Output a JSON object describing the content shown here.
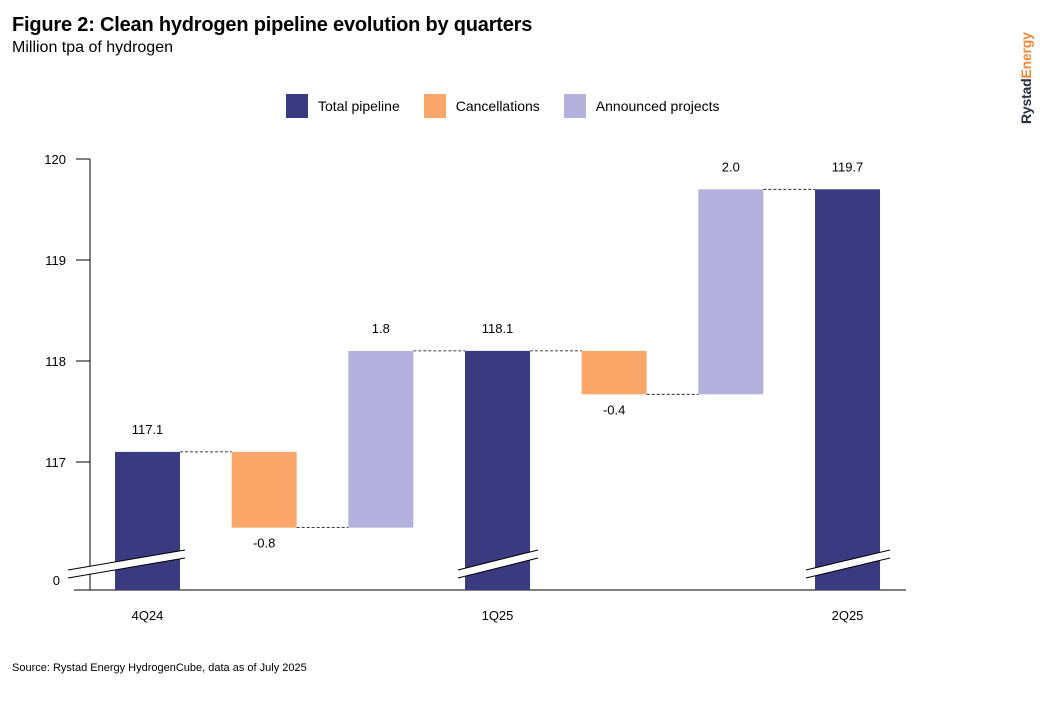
{
  "header": {
    "title": "Figure 2: Clean hydrogen pipeline evolution by quarters",
    "subtitle": "Million tpa of hydrogen"
  },
  "brand": {
    "part1": "Rystad",
    "part2": "Energy"
  },
  "source": "Source: Rystad Energy HydrogenCube, data as of July 2025",
  "legend": [
    {
      "label": "Total pipeline",
      "color": "#3a3a80"
    },
    {
      "label": "Cancellations",
      "color": "#fca76a"
    },
    {
      "label": "Announced projects",
      "color": "#b4b2dc"
    }
  ],
  "chart_data": {
    "type": "bar",
    "subtype": "waterfall",
    "title": "Figure 2: Clean hydrogen pipeline evolution by quarters",
    "ylabel": "Million tpa of hydrogen",
    "ylim": [
      116.0,
      120.0
    ],
    "broken_axis": true,
    "yticks": [
      117,
      118,
      119,
      120
    ],
    "ytick_labels": [
      "117",
      "118",
      "119",
      "120"
    ],
    "broken_axis_label": "0",
    "x_labels": [
      "4Q24",
      "1Q25",
      "2Q25"
    ],
    "grid": false,
    "legend_position": "top",
    "steps": [
      {
        "kind": "total",
        "value": 117.1,
        "label": "117.1",
        "quarter": "4Q24"
      },
      {
        "kind": "cancellation",
        "value": -0.75,
        "label": "-0.8"
      },
      {
        "kind": "announced",
        "value": 1.75,
        "label": "1.8"
      },
      {
        "kind": "total",
        "value": 118.1,
        "label": "118.1",
        "quarter": "1Q25"
      },
      {
        "kind": "cancellation",
        "value": -0.43,
        "label": "-0.4"
      },
      {
        "kind": "announced",
        "value": 2.03,
        "label": "2.0"
      },
      {
        "kind": "total",
        "value": 119.7,
        "label": "119.7",
        "quarter": "2Q25"
      }
    ]
  }
}
